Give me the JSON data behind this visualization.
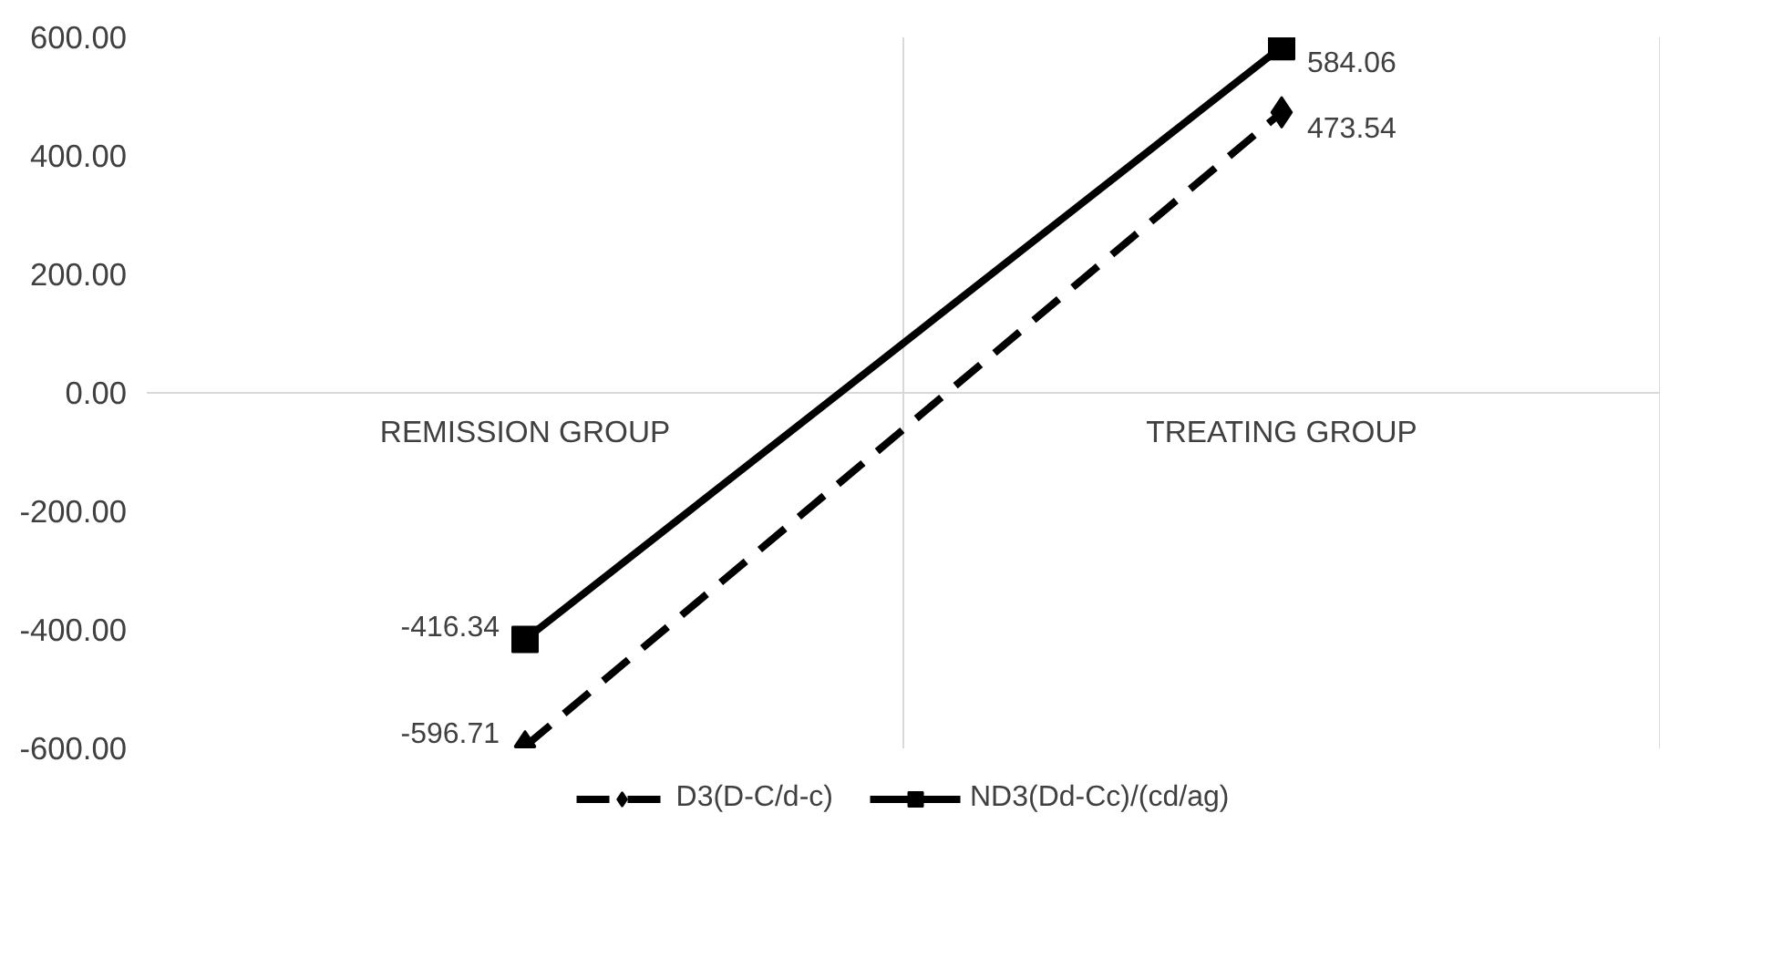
{
  "chart_data": {
    "type": "line",
    "categories": [
      "REMISSION GROUP",
      "TREATING GROUP"
    ],
    "series": [
      {
        "name": "D3(D-C/d-c)",
        "color": "#000000",
        "values": [
          -596.71,
          473.54
        ],
        "marker": "diamond",
        "line_style": "dashed"
      },
      {
        "name": "ND3(Dd-Cc)/(cd/ag)",
        "color": "#000000",
        "values": [
          -416.34,
          584.06
        ],
        "marker": "square",
        "line_style": "solid"
      }
    ],
    "ylim": [
      -600,
      600
    ],
    "yticks": [
      {
        "value": -600,
        "label": "-600.00"
      },
      {
        "value": -400,
        "label": "-400.00"
      },
      {
        "value": -200,
        "label": "-200.00"
      },
      {
        "value": 0,
        "label": "0.00"
      },
      {
        "value": 200,
        "label": "200.00"
      },
      {
        "value": 400,
        "label": "400.00"
      },
      {
        "value": 600,
        "label": "600.00"
      }
    ],
    "grid": "x",
    "legend": "bottom",
    "data_labels": true
  }
}
